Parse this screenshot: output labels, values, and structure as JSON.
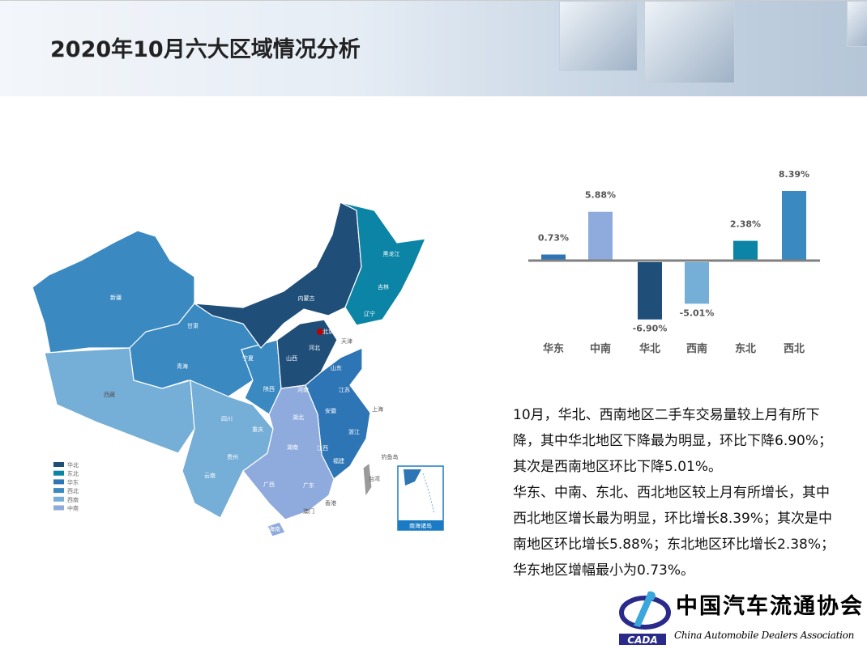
{
  "header": {
    "title": "2020年10月六大区域情况分析"
  },
  "colors": {
    "华北": "#1f4e79",
    "东北": "#0b84a5",
    "华东": "#2e75b6",
    "西北": "#3a89c1",
    "西南": "#75aed6",
    "中南": "#8faadc",
    "taiwan": "#9a9a9a"
  },
  "map": {
    "legend": [
      {
        "label": "华北",
        "color": "#1f4e79"
      },
      {
        "label": "东北",
        "color": "#0b84a5"
      },
      {
        "label": "华东",
        "color": "#2e75b6"
      },
      {
        "label": "西北",
        "color": "#3a89c1"
      },
      {
        "label": "西南",
        "color": "#75aed6"
      },
      {
        "label": "中南",
        "color": "#8faadc"
      }
    ],
    "provinces": [
      "新疆",
      "西藏",
      "青海",
      "甘肃",
      "内蒙古",
      "黑龙江",
      "吉林",
      "辽宁",
      "北京",
      "天津",
      "河北",
      "山西",
      "山东",
      "宁夏",
      "陕西",
      "河南",
      "江苏",
      "上海",
      "安徽",
      "湖北",
      "浙江",
      "四川",
      "重庆",
      "湖南",
      "江西",
      "福建",
      "贵州",
      "云南",
      "广西",
      "广东",
      "澳门",
      "香港",
      "台湾",
      "海南",
      "钓鱼岛"
    ],
    "inset_label": "南海诸岛"
  },
  "chart_data": {
    "type": "bar",
    "categories": [
      "华东",
      "中南",
      "华北",
      "西南",
      "东北",
      "西北"
    ],
    "values": [
      0.73,
      5.88,
      -6.9,
      -5.01,
      2.38,
      8.39
    ],
    "data_labels": [
      "0.73%",
      "5.88%",
      "-6.90%",
      "-5.01%",
      "2.38%",
      "8.39%"
    ],
    "colors": [
      "#2e75b6",
      "#8faadc",
      "#1f4e79",
      "#75aed6",
      "#0b84a5",
      "#3a89c1"
    ],
    "unit": "%",
    "grid": false
  },
  "text": {
    "p1": "10月，华北、西南地区二手车交易量较上月有所下降，其中华北地区下降最为明显，环比下降6.90%；其次是西南地区环比下降5.01%。",
    "p2": "华东、中南、东北、西北地区较上月有所增长，其中西北地区增长最为明显，环比增长8.39%；其次是中南地区环比增长5.88%；东北地区环比增长2.38%；华东地区增幅最小为0.73%。"
  },
  "logo": {
    "cn": "中国汽车流通协会",
    "en": "China Automobile Dealers Association",
    "abbr": "CADA"
  }
}
